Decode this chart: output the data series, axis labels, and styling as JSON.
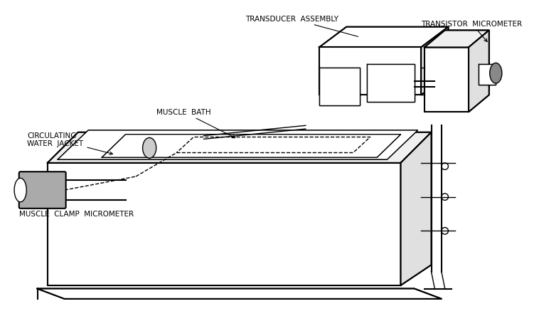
{
  "title": "",
  "background_color": "#ffffff",
  "line_color": "#000000",
  "labels": {
    "transducer_assembly": "TRANSDUCER  ASSEMBLY",
    "transistor_micrometer": "TRANSISTOR  MICROMETER",
    "muscle_bath": "MUSCLE  BATH",
    "circulating_water_jacket": "CIRCULATING\nWATER  JACKET",
    "muscle_clamp_micrometer": "MUSCLE  CLAMP  MICROMETER"
  },
  "fig_width": 7.58,
  "fig_height": 4.52,
  "dpi": 100
}
